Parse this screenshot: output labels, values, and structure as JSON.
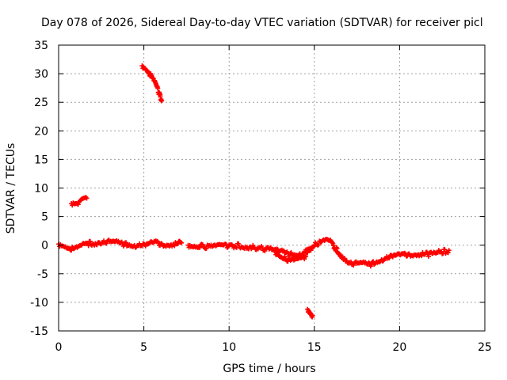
{
  "chart_data": {
    "type": "scatter",
    "title": "Day 078 of 2026, Sidereal Day-to-day VTEC variation (SDTVAR) for receiver picl",
    "xlabel": "GPS time / hours",
    "ylabel": "SDTVAR / TECUs",
    "xlim": [
      0,
      25
    ],
    "ylim": [
      -15,
      35
    ],
    "x_ticks": [
      0,
      5,
      10,
      15,
      20,
      25
    ],
    "y_ticks": [
      -15,
      -10,
      -5,
      0,
      5,
      10,
      15,
      20,
      25,
      30,
      35
    ],
    "grid": true,
    "marker": "plus",
    "series": [
      {
        "name": "SDTVAR",
        "color": "#ff0000",
        "segments": [
          {
            "x": [
              0.0,
              0.3,
              0.6,
              0.9,
              1.2,
              1.5,
              1.8,
              2.1,
              2.4,
              2.7,
              3.0,
              3.3,
              3.6,
              3.9,
              4.2,
              4.5,
              4.8,
              5.1,
              5.4,
              5.7,
              6.0,
              6.3,
              6.6,
              6.9,
              7.2
            ],
            "y": [
              0.2,
              0.0,
              -0.4,
              -0.6,
              -0.4,
              0.0,
              0.3,
              0.4,
              0.5,
              0.7,
              0.6,
              0.5,
              0.3,
              0.2,
              0.1,
              0.0,
              0.1,
              0.0,
              0.3,
              0.5,
              0.2,
              0.1,
              0.2,
              0.3,
              0.4
            ]
          },
          {
            "x": [
              7.6,
              8.0,
              8.5,
              9.0,
              9.5,
              10.0,
              10.5,
              11.0,
              11.5,
              12.0,
              12.5,
              13.0,
              13.3,
              13.6,
              13.9,
              14.2,
              14.5,
              14.8
            ],
            "y": [
              0.0,
              -0.1,
              -0.2,
              -0.2,
              -0.2,
              -0.2,
              -0.1,
              -0.2,
              -0.4,
              -0.6,
              -0.8,
              -1.1,
              -1.4,
              -1.6,
              -1.6,
              -1.4,
              -1.2,
              -0.9
            ]
          },
          {
            "x": [
              12.7,
              13.0,
              13.3,
              13.6,
              13.9,
              14.2,
              14.5
            ],
            "y": [
              -1.2,
              -1.8,
              -2.3,
              -2.6,
              -2.7,
              -2.5,
              -1.9
            ]
          },
          {
            "x": [
              14.5,
              14.8,
              15.1,
              15.4,
              15.7,
              16.0,
              16.3,
              16.6,
              16.9,
              17.2,
              17.5,
              17.8,
              18.1,
              18.4,
              18.7,
              19.0,
              19.3,
              19.6,
              19.9,
              20.2,
              20.5,
              20.8,
              21.1,
              21.4,
              21.7,
              22.0,
              22.3,
              22.6,
              22.9
            ],
            "y": [
              -0.8,
              -0.3,
              0.3,
              0.6,
              0.8,
              0.4,
              -0.8,
              -1.8,
              -2.7,
              -3.1,
              -3.2,
              -3.2,
              -3.4,
              -3.2,
              -2.8,
              -2.4,
              -2.1,
              -1.9,
              -1.8,
              -1.7,
              -1.6,
              -1.6,
              -1.5,
              -1.5,
              -1.6,
              -1.5,
              -1.3,
              -1.1,
              -0.9
            ]
          },
          {
            "x": [
              0.75,
              0.9,
              1.05,
              1.2,
              1.35,
              1.5,
              1.65
            ],
            "y": [
              7.3,
              7.5,
              7.4,
              7.6,
              7.8,
              8.0,
              8.2
            ]
          },
          {
            "x": [
              4.9,
              5.1,
              5.3,
              5.5,
              5.7,
              5.9,
              6.05
            ],
            "y": [
              31.4,
              31.0,
              30.3,
              29.3,
              28.0,
              26.5,
              25.3
            ]
          },
          {
            "x": [
              14.6,
              14.7,
              14.8,
              14.9
            ],
            "y": [
              -11.2,
              -11.5,
              -11.9,
              -12.3
            ]
          }
        ]
      }
    ]
  }
}
